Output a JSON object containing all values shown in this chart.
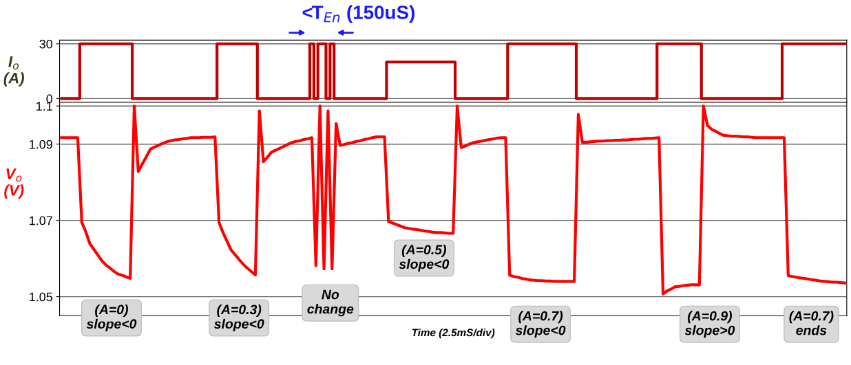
{
  "chart_data": [
    {
      "type": "step",
      "ylabel": "I$_{o}$\n(A)",
      "ylim": [
        -2,
        32
      ],
      "yticks": [
        0,
        30
      ],
      "tick_labels": "y",
      "grid": "y",
      "annotations": [
        "<T$_{En}$ (150uS)"
      ],
      "categories": [
        null,
        null,
        null,
        null,
        null,
        null,
        null,
        null,
        null,
        null,
        null,
        null,
        null,
        null,
        null,
        null,
        null,
        null,
        null,
        null,
        null,
        null,
        null,
        null,
        null,
        null,
        null,
        null,
        null,
        null,
        null,
        null,
        null,
        null,
        null,
        null,
        null,
        null,
        null,
        null,
        null,
        null,
        null,
        null,
        null,
        null,
        null,
        null,
        null,
        null,
        null,
        null,
        null,
        null,
        null,
        null,
        null,
        null,
        null,
        null,
        null,
        null,
        null,
        null,
        null,
        null,
        null,
        null,
        null,
        null,
        null,
        null,
        null,
        null,
        null,
        null,
        null,
        null,
        null,
        null,
        null,
        null,
        null,
        null,
        null,
        null,
        null,
        null,
        null,
        null,
        null,
        null,
        null,
        null,
        null,
        null,
        null,
        null,
        null,
        null,
        null,
        null,
        null,
        null,
        null,
        null,
        null,
        null,
        null,
        null,
        null,
        null,
        null,
        null,
        null,
        null,
        null,
        null,
        null,
        null,
        null,
        null,
        null,
        null,
        null,
        null,
        null,
        null,
        null,
        null,
        null,
        null,
        null,
        null,
        null,
        null,
        null,
        null,
        null,
        null,
        null,
        null,
        null,
        null,
        null,
        null,
        null,
        null,
        null,
        null,
        null,
        null,
        null,
        null,
        null,
        null,
        null,
        null,
        null,
        null,
        null,
        null,
        null,
        null,
        null,
        null,
        null,
        null,
        null,
        null,
        null,
        null,
        null,
        null,
        null,
        null,
        null,
        null,
        null,
        null,
        null,
        null,
        null,
        null,
        null,
        null,
        null,
        null,
        null,
        null,
        null,
        null,
        null,
        null,
        null
      ],
      "series": [
        {
          "color": "#c00000",
          "values": [
            0,
            0,
            0,
            0,
            0,
            30,
            30,
            30,
            30,
            30,
            30,
            30,
            30,
            30,
            30,
            30,
            30,
            30,
            0,
            0,
            0,
            0,
            0,
            0,
            0,
            0,
            0,
            0,
            0,
            0,
            0,
            0,
            0,
            0,
            0,
            0,
            0,
            0,
            0,
            30,
            30,
            30,
            30,
            30,
            30,
            30,
            30,
            30,
            30,
            0,
            0,
            0,
            0,
            0,
            0,
            0,
            0,
            0,
            0,
            0,
            0,
            0,
            30,
            0,
            30,
            30,
            0,
            30,
            0,
            0,
            0,
            0,
            0,
            0,
            0,
            0,
            0,
            0,
            0,
            0,
            0,
            20,
            20,
            20,
            20,
            20,
            20,
            20,
            20,
            20,
            20,
            20,
            20,
            20,
            20,
            20,
            20,
            20,
            0,
            0,
            0,
            0,
            0,
            0,
            0,
            0,
            0,
            0,
            0,
            0,
            0,
            30,
            30,
            30,
            30,
            30,
            30,
            30,
            30,
            30,
            30,
            30,
            30,
            30,
            30,
            30,
            30,
            30,
            0,
            0,
            0,
            0,
            0,
            0,
            0,
            0,
            0,
            0,
            0,
            0,
            0,
            0,
            0,
            0,
            0,
            0,
            0,
            0,
            30,
            30,
            30,
            30,
            30,
            30,
            30,
            30,
            30,
            30,
            30,
            0,
            0,
            0,
            0,
            0,
            0,
            0,
            0,
            0,
            0,
            0,
            0,
            0,
            0,
            0,
            0,
            0,
            0,
            0,
            0,
            30,
            30,
            30,
            30,
            30,
            30,
            30,
            30,
            30,
            30,
            30,
            30,
            30,
            30,
            30,
            30
          ]
        }
      ]
    },
    {
      "type": "line",
      "ylabel": "V$_{o}$\n(V)",
      "xlabel": "Time (2.5mS/div)",
      "ylim": [
        1.045,
        1.101
      ],
      "yticks": [
        1.05,
        1.07,
        1.09,
        1.1
      ],
      "tick_labels": "y",
      "grid": "y",
      "annotations": [
        "(A=0)\nslope<0",
        "(A=0.3)\nslope<0",
        "No\nchange",
        "(A=0.5)\nslope<0",
        "(A=0.7)\nslope<0",
        "(A=0.9)\nslope>0",
        "(A=0.7)\nends"
      ],
      "categories": [
        null,
        null,
        null,
        null,
        null,
        null,
        null,
        null,
        null,
        null,
        null,
        null,
        null,
        null,
        null,
        null,
        null,
        null,
        null,
        null,
        null,
        null,
        null,
        null,
        null,
        null,
        null,
        null,
        null,
        null,
        null,
        null,
        null,
        null,
        null,
        null,
        null,
        null,
        null,
        null,
        null,
        null,
        null,
        null,
        null,
        null,
        null,
        null,
        null,
        null,
        null,
        null,
        null,
        null,
        null,
        null,
        null,
        null,
        null,
        null,
        null,
        null,
        null,
        null,
        null,
        null,
        null,
        null,
        null,
        null,
        null,
        null,
        null,
        null,
        null,
        null,
        null,
        null,
        null,
        null,
        null,
        null,
        null,
        null,
        null,
        null,
        null,
        null,
        null,
        null,
        null,
        null,
        null,
        null,
        null,
        null,
        null,
        null,
        null,
        null,
        null,
        null,
        null,
        null,
        null,
        null,
        null,
        null,
        null,
        null,
        null,
        null,
        null,
        null,
        null,
        null,
        null,
        null,
        null,
        null,
        null,
        null,
        null,
        null,
        null,
        null,
        null,
        null,
        null,
        null,
        null,
        null,
        null,
        null,
        null,
        null,
        null,
        null,
        null,
        null,
        null,
        null,
        null,
        null,
        null,
        null,
        null,
        null,
        null,
        null,
        null,
        null,
        null,
        null,
        null,
        null,
        null,
        null,
        null,
        null,
        null,
        null,
        null,
        null,
        null,
        null,
        null,
        null,
        null,
        null,
        null,
        null,
        null,
        null,
        null,
        null,
        null,
        null,
        null,
        null,
        null,
        null,
        null,
        null,
        null,
        null,
        null,
        null,
        null,
        null,
        null,
        null,
        null,
        null,
        null
      ],
      "series": [
        {
          "color": "#ff0000",
          "values": [
            1.0917,
            1.0917,
            1.0917,
            1.0917,
            1.0917,
            1.0695,
            1.067,
            1.0639,
            1.0624,
            1.0609,
            1.0594,
            1.0583,
            1.0575,
            1.0566,
            1.0559,
            1.0556,
            1.0552,
            1.0548,
            1.1,
            1.0828,
            1.0848,
            1.0867,
            1.0887,
            1.0892,
            1.0897,
            1.0902,
            1.0906,
            1.0909,
            1.0911,
            1.0912,
            1.0914,
            1.0915,
            1.0917,
            1.0917,
            1.0917,
            1.0918,
            1.0918,
            1.0918,
            1.0919,
            1.0695,
            1.0668,
            1.0645,
            1.0622,
            1.061,
            1.0597,
            1.0585,
            1.0575,
            1.0566,
            1.0557,
            1.0987,
            1.0854,
            1.0866,
            1.0879,
            1.0884,
            1.0889,
            1.0894,
            1.0899,
            1.0904,
            1.0907,
            1.0909,
            1.0912,
            1.0914,
            1.0917,
            1.0581,
            1.1,
            1.0573,
            1.0987,
            1.0573,
            1.0954,
            1.0897,
            1.0899,
            1.0902,
            1.0904,
            1.0907,
            1.0909,
            1.0912,
            1.0914,
            1.0917,
            1.0919,
            1.0919,
            1.0919,
            1.0697,
            1.0693,
            1.0689,
            1.0685,
            1.0681,
            1.0679,
            1.0677,
            1.0676,
            1.0674,
            1.0672,
            1.0671,
            1.0669,
            1.0668,
            1.0668,
            1.0667,
            1.0666,
            1.0666,
            1.1,
            1.0891,
            1.0895,
            1.09,
            1.0904,
            1.0906,
            1.0908,
            1.091,
            1.0912,
            1.0914,
            1.0916,
            1.0917,
            1.0917,
            1.0556,
            1.0553,
            1.0551,
            1.0548,
            1.0546,
            1.0544,
            1.0543,
            1.0542,
            1.0542,
            1.0541,
            1.0541,
            1.054,
            1.054,
            1.054,
            1.054,
            1.054,
            1.054,
            1.0978,
            1.0905,
            1.0905,
            1.0906,
            1.0907,
            1.0908,
            1.0908,
            1.0909,
            1.0909,
            1.091,
            1.091,
            1.0911,
            1.0911,
            1.0912,
            1.0913,
            1.0913,
            1.0914,
            1.0915,
            1.0915,
            1.0916,
            1.0917,
            1.0507,
            1.0515,
            1.052,
            1.0526,
            1.0527,
            1.0529,
            1.053,
            1.0531,
            1.0531,
            1.0531,
            1.1,
            1.0949,
            1.0939,
            1.0934,
            1.0928,
            1.0923,
            1.0922,
            1.0921,
            1.0921,
            1.092,
            1.0919,
            1.0919,
            1.0918,
            1.0917,
            1.0917,
            1.0917,
            1.0917,
            1.0917,
            1.0917,
            1.0917,
            1.0917,
            1.0555,
            1.0553,
            1.0551,
            1.0549,
            1.0548,
            1.0546,
            1.0544,
            1.0543,
            1.0541,
            1.054,
            1.0539,
            1.0538,
            1.0538,
            1.0537,
            1.0536
          ]
        }
      ]
    }
  ]
}
